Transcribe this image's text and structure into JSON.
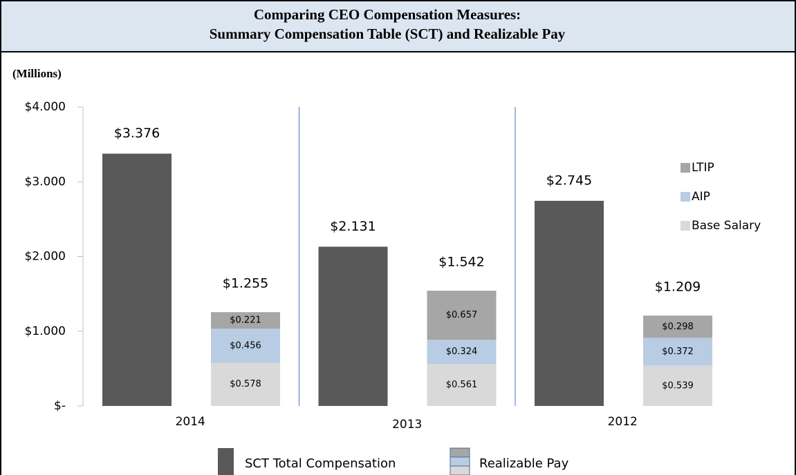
{
  "chart_data": {
    "type": "bar",
    "title": [
      "Comparing CEO Compensation Measures:",
      "Summary Compensation Table (SCT) and Realizable Pay"
    ],
    "y_label": "(Millions)",
    "categories": [
      "2014",
      "2013",
      "2012"
    ],
    "ylim": [
      0,
      4
    ],
    "yticks": [
      {
        "value": 0,
        "label": "$-"
      },
      {
        "value": 1,
        "label": "$1.000"
      },
      {
        "value": 2,
        "label": "$2.000"
      },
      {
        "value": 3,
        "label": "$3.000"
      },
      {
        "value": 4,
        "label": "$4.000"
      }
    ],
    "series": [
      {
        "name": "SCT Total Compensation",
        "color": "#595959",
        "values": [
          3.376,
          2.131,
          2.745
        ],
        "value_labels": [
          "$3.376",
          "$2.131",
          "$2.745"
        ]
      },
      {
        "name": "Base Salary",
        "color": "#d9d9d9",
        "stacked": true,
        "values": [
          0.578,
          0.561,
          0.539
        ],
        "value_labels": [
          "$0.578",
          "$0.561",
          "$0.539"
        ]
      },
      {
        "name": "AIP",
        "color": "#b8cce4",
        "stacked": true,
        "values": [
          0.456,
          0.324,
          0.372
        ],
        "value_labels": [
          "$0.456",
          "$0.324",
          "$0.372"
        ]
      },
      {
        "name": "LTIP",
        "color": "#a6a6a6",
        "stacked": true,
        "values": [
          0.221,
          0.657,
          0.298
        ],
        "value_labels": [
          "$0.221",
          "$0.657",
          "$0.298"
        ]
      }
    ],
    "stack_totals": {
      "name": "Realizable Pay",
      "values": [
        1.255,
        1.542,
        1.209
      ],
      "value_labels": [
        "$1.255",
        "$1.542",
        "$1.209"
      ]
    }
  }
}
